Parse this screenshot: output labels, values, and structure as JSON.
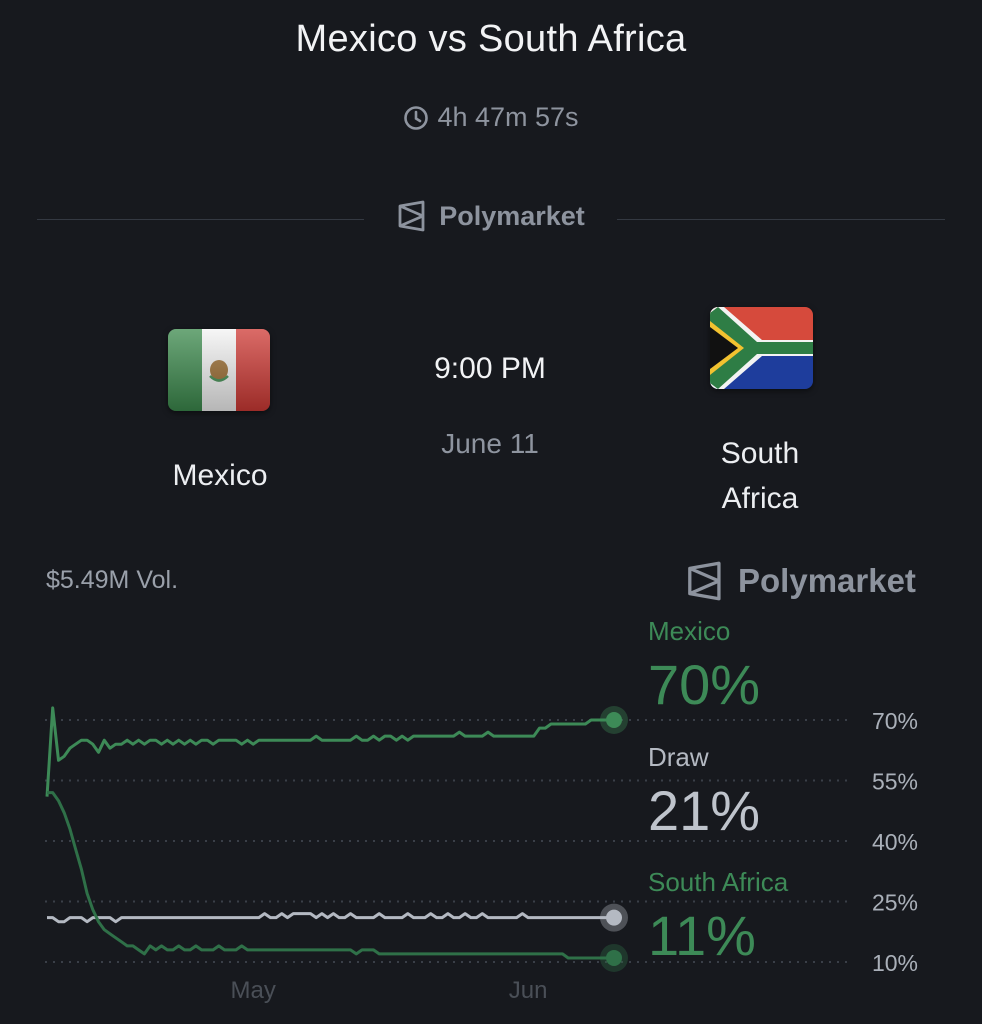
{
  "header": {
    "title": "Mexico vs South Africa",
    "countdown": "4h 47m 57s",
    "brand": "Polymarket"
  },
  "match": {
    "home_team": "Mexico",
    "away_team_line1": "South",
    "away_team_line2": "Africa",
    "time": "9:00 PM",
    "date": "June 11"
  },
  "market": {
    "volume": "$5.49M Vol.",
    "brand": "Polymarket"
  },
  "legend": [
    {
      "name": "Mexico",
      "value": "70%"
    },
    {
      "name": "Draw",
      "value": "21%"
    },
    {
      "name": "South Africa",
      "value": "11%"
    }
  ],
  "colors": {
    "background": "#17191e",
    "mexico_line": "#3d8a57",
    "draw_line": "#b4b9c2",
    "south_africa_line": "#2f7048",
    "muted_text": "#8e949f"
  },
  "chart_data": {
    "type": "line",
    "yticks": [
      "70%",
      "55%",
      "40%",
      "25%",
      "10%"
    ],
    "ytick_values": [
      70,
      55,
      40,
      25,
      10
    ],
    "xticks": [
      "May",
      "Jun"
    ],
    "ylim": [
      10,
      70
    ],
    "x_count": 100,
    "xtick_positions": [
      36,
      84
    ],
    "grid": true,
    "series": [
      {
        "name": "Mexico",
        "values": [
          51,
          73,
          60,
          61,
          63,
          64,
          65,
          65,
          64,
          62,
          65,
          63,
          64,
          64,
          65,
          64,
          65,
          64,
          65,
          65,
          64,
          65,
          64,
          65,
          64,
          65,
          64,
          65,
          65,
          64,
          65,
          65,
          65,
          65,
          64,
          65,
          64,
          65,
          65,
          65,
          65,
          65,
          65,
          65,
          65,
          65,
          65,
          66,
          65,
          65,
          65,
          65,
          65,
          65,
          66,
          65,
          65,
          66,
          65,
          66,
          66,
          65,
          66,
          65,
          66,
          66,
          66,
          66,
          66,
          66,
          66,
          66,
          67,
          66,
          66,
          66,
          66,
          67,
          66,
          66,
          66,
          66,
          66,
          66,
          66,
          66,
          68,
          68,
          69,
          69,
          69,
          69,
          69,
          69,
          69,
          70,
          70,
          70,
          70,
          70
        ]
      },
      {
        "name": "Draw",
        "values": [
          21,
          21,
          20,
          20,
          21,
          21,
          21,
          20,
          21,
          21,
          21,
          21,
          20,
          21,
          21,
          21,
          21,
          21,
          21,
          21,
          21,
          21,
          21,
          21,
          21,
          21,
          21,
          21,
          21,
          21,
          21,
          21,
          21,
          21,
          21,
          21,
          21,
          21,
          22,
          21,
          21,
          22,
          21,
          22,
          22,
          22,
          22,
          21,
          22,
          21,
          22,
          21,
          21,
          22,
          21,
          21,
          21,
          21,
          22,
          21,
          21,
          21,
          21,
          22,
          21,
          21,
          21,
          22,
          21,
          21,
          22,
          21,
          21,
          22,
          21,
          21,
          22,
          21,
          21,
          21,
          21,
          21,
          21,
          22,
          21,
          21,
          21,
          21,
          21,
          21,
          21,
          21,
          21,
          21,
          21,
          21,
          21,
          21,
          21,
          21
        ]
      },
      {
        "name": "South Africa",
        "values": [
          52,
          52,
          50,
          47,
          43,
          38,
          33,
          27,
          23,
          20,
          18,
          17,
          16,
          15,
          14,
          14,
          13,
          12,
          14,
          13,
          14,
          13,
          13,
          14,
          13,
          13,
          14,
          13,
          13,
          13,
          14,
          13,
          13,
          13,
          14,
          13,
          13,
          13,
          13,
          13,
          13,
          13,
          13,
          13,
          13,
          13,
          13,
          13,
          13,
          13,
          13,
          13,
          13,
          13,
          12,
          13,
          13,
          13,
          12,
          12,
          12,
          12,
          12,
          12,
          12,
          12,
          12,
          12,
          12,
          12,
          12,
          12,
          12,
          12,
          12,
          12,
          12,
          12,
          12,
          12,
          12,
          12,
          12,
          12,
          12,
          12,
          12,
          12,
          12,
          12,
          12,
          11,
          11,
          11,
          11,
          11,
          11,
          11,
          11,
          11
        ]
      }
    ]
  }
}
